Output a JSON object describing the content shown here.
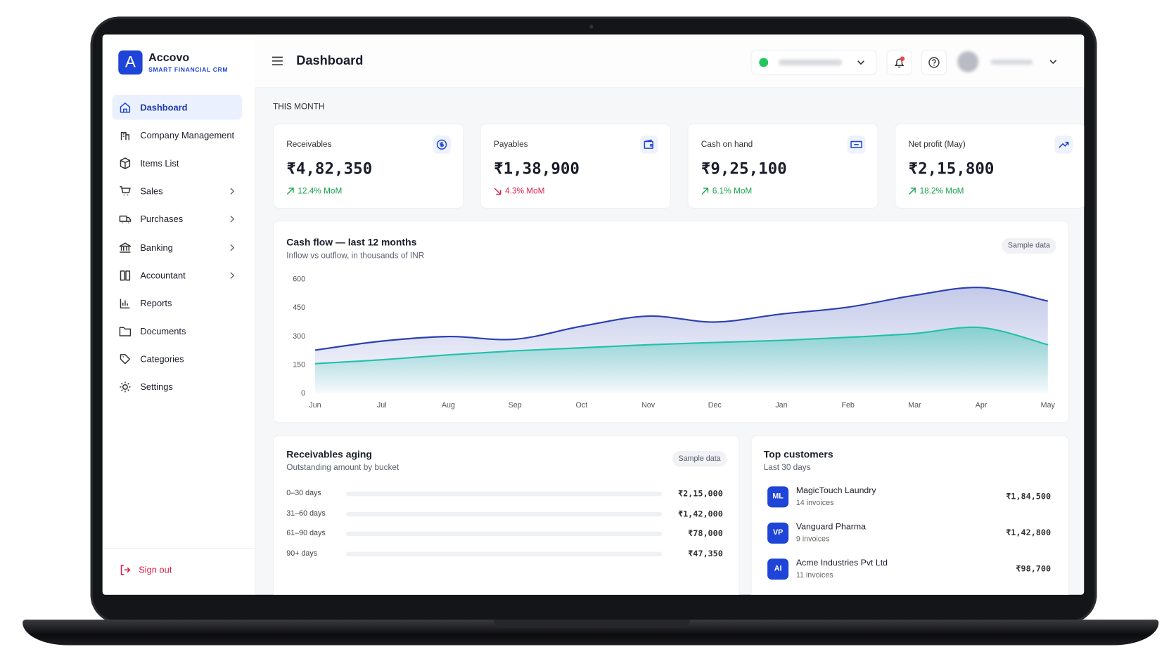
{
  "app": {
    "logo": "A",
    "name": "Accovo",
    "tagline": "SMART FINANCIAL CRM"
  },
  "nav": [
    {
      "label": "Dashboard",
      "active": true
    },
    {
      "label": "Company Management"
    },
    {
      "label": "Items List"
    },
    {
      "label": "Sales",
      "submenu": true
    },
    {
      "label": "Purchases",
      "submenu": true
    },
    {
      "label": "Banking",
      "submenu": true
    },
    {
      "label": "Accountant",
      "submenu": true
    },
    {
      "label": "Reports"
    },
    {
      "label": "Documents"
    },
    {
      "label": "Categories"
    },
    {
      "label": "Settings"
    }
  ],
  "sign_out": "Sign out",
  "header": {
    "title": "Dashboard"
  },
  "section_label": "THIS MONTH",
  "stats": [
    {
      "label": "Receivables",
      "value": "₹4,82,350",
      "change": "12.4% MoM",
      "trend": "up"
    },
    {
      "label": "Payables",
      "value": "₹1,38,900",
      "change": "4.3% MoM",
      "trend": "down"
    },
    {
      "label": "Cash on hand",
      "value": "₹9,25,100",
      "change": "6.1% MoM",
      "trend": "up"
    },
    {
      "label": "Net profit (May)",
      "value": "₹2,15,800",
      "change": "18.2% MoM",
      "trend": "up"
    }
  ],
  "cash_flow": {
    "type": "line",
    "title": "Cash flow — last 12 months",
    "subtitle": "Inflow vs outflow, in thousands of INR",
    "badge": "Sample data",
    "categories": [
      "Jun",
      "Jul",
      "Aug",
      "Sep",
      "Oct",
      "Nov",
      "Dec",
      "Jan",
      "Feb",
      "Mar",
      "Apr",
      "May"
    ],
    "series": [
      {
        "color": "#2b3fb0",
        "values": [
          225,
          272,
          296,
          282,
          350,
          403,
          372,
          414,
          450,
          512,
          553,
          482
        ]
      },
      {
        "color": "#22c1aa",
        "values": [
          154,
          174,
          200,
          221,
          237,
          253,
          265,
          276,
          292,
          312,
          343,
          253
        ]
      }
    ],
    "ylim": [
      0,
      600
    ],
    "yticks": [
      0,
      150,
      300,
      450,
      600
    ]
  },
  "aging": {
    "title": "Receivables aging",
    "subtitle": "Outstanding amount by bucket",
    "badge": "Sample data",
    "rows": [
      {
        "label": "0–30 days",
        "amount": "₹2,15,000"
      },
      {
        "label": "31–60 days",
        "amount": "₹1,42,000"
      },
      {
        "label": "61–90 days",
        "amount": "₹78,000"
      },
      {
        "label": "90+ days",
        "amount": "₹47,350"
      }
    ]
  },
  "customers": {
    "title": "Top customers",
    "subtitle": "Last 30 days",
    "rows": [
      {
        "initials": "ML",
        "name": "MagicTouch Laundry",
        "invoices": "14 invoices",
        "amount": "₹1,84,500"
      },
      {
        "initials": "VP",
        "name": "Vanguard Pharma",
        "invoices": "9 invoices",
        "amount": "₹1,42,800"
      },
      {
        "initials": "AI",
        "name": "Acme Industries Pvt Ltd",
        "invoices": "11 invoices",
        "amount": "₹98,700"
      }
    ]
  }
}
